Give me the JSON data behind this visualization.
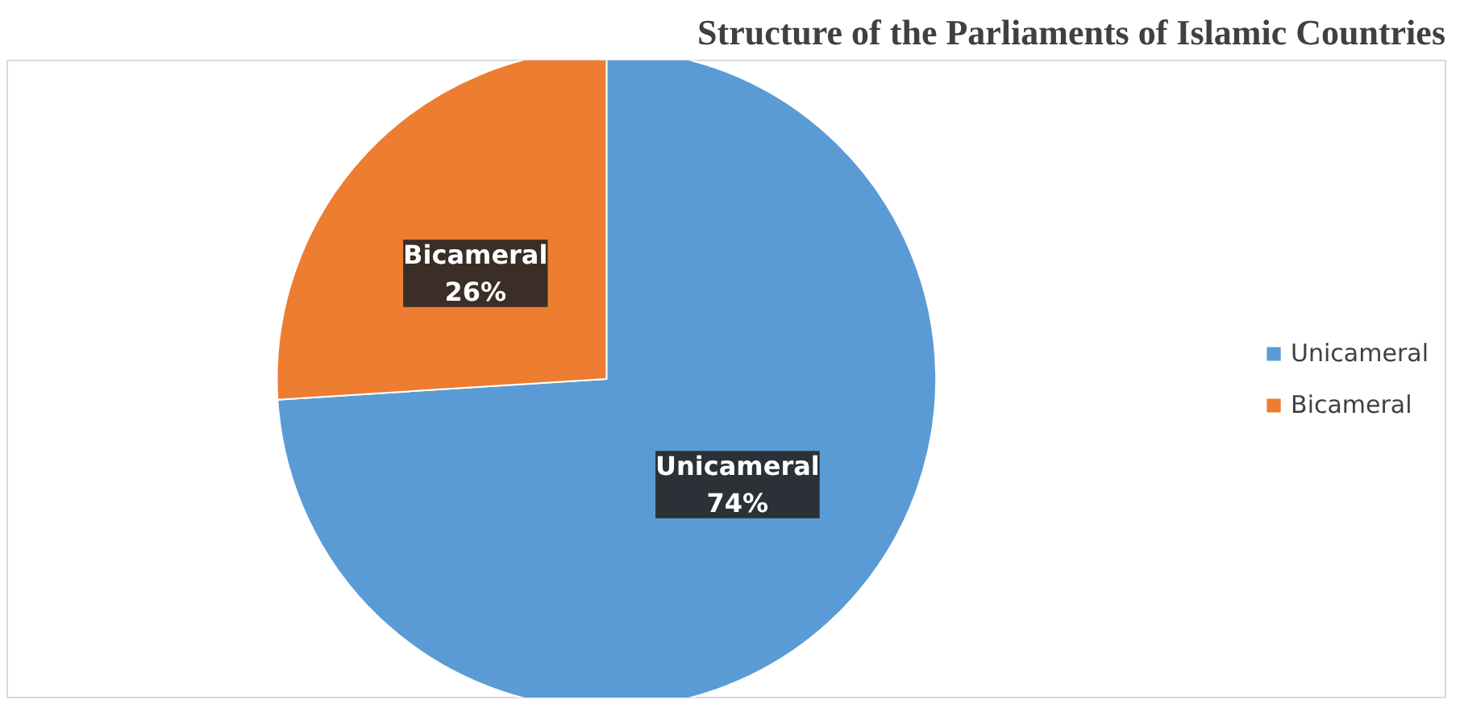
{
  "chart_data": {
    "type": "pie",
    "title": "Structure of the Parliaments of Islamic Countries",
    "categories": [
      "Unicameral",
      "Bicameral"
    ],
    "values": [
      74,
      26
    ],
    "colors": [
      "#5b9bd5",
      "#ed7d31"
    ],
    "value_labels": [
      "74%",
      "26%"
    ],
    "legend": "right"
  }
}
